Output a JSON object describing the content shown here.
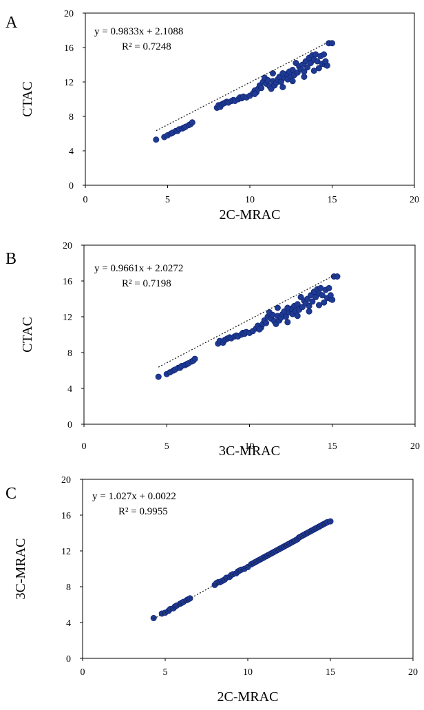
{
  "colors": {
    "point": "#1f3a93",
    "point_stroke": "#0b1f6b",
    "trendline": "#222222",
    "axis": "#000000"
  },
  "chart_data": [
    {
      "type": "scatter",
      "panel_label": "A",
      "xlabel": "2C-MRAC",
      "ylabel": "CTAC",
      "xlim": [
        0,
        20
      ],
      "ylim": [
        0,
        20
      ],
      "xticks": [
        "0",
        "5",
        "10",
        "15",
        "20"
      ],
      "yticks": [
        "0",
        "4",
        "8",
        "12",
        "16",
        "20"
      ],
      "grid": false,
      "equation": "y = 0.9833x + 2.1088",
      "r_squared": "R² = 0.7248",
      "trendline": {
        "slope": 0.9833,
        "intercept": 2.1088,
        "x_range": [
          4.3,
          15.0
        ]
      },
      "points": [
        [
          4.3,
          5.3
        ],
        [
          4.8,
          5.6
        ],
        [
          5.0,
          5.8
        ],
        [
          5.2,
          6.0
        ],
        [
          5.3,
          6.1
        ],
        [
          5.5,
          6.3
        ],
        [
          5.6,
          6.3
        ],
        [
          5.7,
          6.5
        ],
        [
          5.9,
          6.6
        ],
        [
          6.0,
          6.7
        ],
        [
          6.1,
          6.8
        ],
        [
          6.3,
          7.0
        ],
        [
          6.4,
          7.1
        ],
        [
          6.5,
          7.3
        ],
        [
          8.0,
          9.0
        ],
        [
          8.1,
          9.3
        ],
        [
          8.2,
          9.1
        ],
        [
          8.3,
          9.4
        ],
        [
          8.4,
          9.5
        ],
        [
          8.5,
          9.6
        ],
        [
          8.6,
          9.7
        ],
        [
          8.7,
          9.6
        ],
        [
          8.9,
          9.8
        ],
        [
          9.0,
          9.9
        ],
        [
          9.1,
          9.8
        ],
        [
          9.3,
          10.0
        ],
        [
          9.4,
          10.2
        ],
        [
          9.5,
          10.1
        ],
        [
          9.6,
          10.3
        ],
        [
          9.8,
          10.2
        ],
        [
          10.0,
          10.4
        ],
        [
          10.2,
          10.7
        ],
        [
          10.3,
          11.0
        ],
        [
          10.4,
          10.8
        ],
        [
          10.5,
          11.2
        ],
        [
          10.6,
          11.6
        ],
        [
          10.7,
          11.3
        ],
        [
          10.8,
          12.0
        ],
        [
          10.9,
          12.5
        ],
        [
          11.0,
          11.8
        ],
        [
          11.1,
          12.2
        ],
        [
          11.2,
          11.5
        ],
        [
          11.3,
          11.2
        ],
        [
          11.4,
          12.1
        ],
        [
          11.5,
          11.6
        ],
        [
          11.6,
          11.9
        ],
        [
          11.7,
          12.3
        ],
        [
          11.8,
          12.6
        ],
        [
          11.9,
          12.0
        ],
        [
          12.0,
          11.4
        ],
        [
          12.1,
          12.5
        ],
        [
          12.2,
          12.9
        ],
        [
          12.3,
          12.3
        ],
        [
          12.4,
          13.2
        ],
        [
          12.5,
          12.6
        ],
        [
          12.6,
          13.4
        ],
        [
          12.7,
          12.8
        ],
        [
          12.8,
          14.2
        ],
        [
          12.9,
          13.1
        ],
        [
          13.0,
          13.8
        ],
        [
          13.1,
          13.5
        ],
        [
          13.2,
          14.0
        ],
        [
          13.3,
          13.2
        ],
        [
          13.4,
          14.4
        ],
        [
          13.5,
          13.7
        ],
        [
          13.6,
          14.8
        ],
        [
          13.7,
          14.2
        ],
        [
          13.8,
          15.1
        ],
        [
          13.9,
          14.6
        ],
        [
          14.0,
          15.2
        ],
        [
          14.1,
          14.4
        ],
        [
          14.2,
          13.6
        ],
        [
          14.3,
          15.0
        ],
        [
          14.4,
          14.1
        ],
        [
          14.5,
          15.2
        ],
        [
          14.6,
          14.0
        ],
        [
          14.7,
          13.9
        ],
        [
          14.8,
          16.5
        ],
        [
          15.0,
          16.5
        ],
        [
          12.0,
          13.0
        ],
        [
          12.6,
          12.1
        ],
        [
          13.3,
          12.6
        ],
        [
          13.9,
          13.3
        ],
        [
          14.6,
          14.4
        ],
        [
          11.4,
          13.0
        ],
        [
          10.3,
          10.6
        ]
      ]
    },
    {
      "type": "scatter",
      "panel_label": "B",
      "xlabel": "3C-MRAC",
      "ylabel": "CTAC",
      "xlim": [
        0,
        20
      ],
      "ylim": [
        0,
        20
      ],
      "xticks": [
        "0",
        "5",
        "10",
        "15",
        "20"
      ],
      "yticks": [
        "0",
        "4",
        "8",
        "12",
        "16",
        "20"
      ],
      "grid": false,
      "equation": "y = 0.9661x + 2.0272",
      "r_squared": "R² = 0.7198",
      "trendline": {
        "slope": 0.9661,
        "intercept": 2.0272,
        "x_range": [
          4.5,
          15.3
        ]
      },
      "points": [
        [
          4.5,
          5.3
        ],
        [
          5.0,
          5.6
        ],
        [
          5.2,
          5.8
        ],
        [
          5.4,
          6.0
        ],
        [
          5.5,
          6.1
        ],
        [
          5.7,
          6.3
        ],
        [
          5.8,
          6.3
        ],
        [
          5.9,
          6.5
        ],
        [
          6.1,
          6.6
        ],
        [
          6.2,
          6.7
        ],
        [
          6.3,
          6.8
        ],
        [
          6.5,
          7.0
        ],
        [
          6.6,
          7.1
        ],
        [
          6.7,
          7.3
        ],
        [
          8.1,
          9.0
        ],
        [
          8.2,
          9.3
        ],
        [
          8.4,
          9.1
        ],
        [
          8.5,
          9.4
        ],
        [
          8.6,
          9.5
        ],
        [
          8.7,
          9.6
        ],
        [
          8.8,
          9.7
        ],
        [
          8.9,
          9.6
        ],
        [
          9.1,
          9.8
        ],
        [
          9.2,
          9.9
        ],
        [
          9.3,
          9.8
        ],
        [
          9.5,
          10.0
        ],
        [
          9.6,
          10.2
        ],
        [
          9.7,
          10.1
        ],
        [
          9.8,
          10.3
        ],
        [
          10.0,
          10.2
        ],
        [
          10.2,
          10.4
        ],
        [
          10.4,
          10.7
        ],
        [
          10.5,
          11.0
        ],
        [
          10.7,
          10.8
        ],
        [
          10.8,
          11.2
        ],
        [
          10.9,
          11.6
        ],
        [
          11.0,
          11.3
        ],
        [
          11.1,
          12.0
        ],
        [
          11.2,
          12.5
        ],
        [
          11.3,
          11.8
        ],
        [
          11.4,
          12.2
        ],
        [
          11.5,
          11.5
        ],
        [
          11.6,
          11.2
        ],
        [
          11.7,
          12.1
        ],
        [
          11.8,
          11.6
        ],
        [
          11.9,
          11.9
        ],
        [
          12.0,
          12.3
        ],
        [
          12.1,
          12.6
        ],
        [
          12.2,
          12.0
        ],
        [
          12.3,
          11.4
        ],
        [
          12.4,
          12.5
        ],
        [
          12.5,
          12.9
        ],
        [
          12.6,
          12.3
        ],
        [
          12.7,
          13.2
        ],
        [
          12.8,
          12.6
        ],
        [
          12.9,
          13.4
        ],
        [
          13.0,
          12.8
        ],
        [
          13.1,
          14.2
        ],
        [
          13.2,
          13.1
        ],
        [
          13.3,
          13.8
        ],
        [
          13.4,
          13.5
        ],
        [
          13.5,
          14.0
        ],
        [
          13.6,
          13.2
        ],
        [
          13.7,
          14.4
        ],
        [
          13.8,
          13.7
        ],
        [
          13.9,
          14.8
        ],
        [
          14.0,
          14.2
        ],
        [
          14.1,
          15.1
        ],
        [
          14.2,
          14.6
        ],
        [
          14.3,
          15.2
        ],
        [
          14.4,
          14.4
        ],
        [
          14.5,
          13.6
        ],
        [
          14.6,
          15.0
        ],
        [
          14.7,
          14.1
        ],
        [
          14.8,
          15.2
        ],
        [
          14.9,
          14.0
        ],
        [
          15.0,
          13.9
        ],
        [
          15.1,
          16.5
        ],
        [
          15.3,
          16.5
        ],
        [
          12.3,
          13.0
        ],
        [
          12.9,
          12.1
        ],
        [
          13.6,
          12.6
        ],
        [
          14.2,
          13.3
        ],
        [
          14.9,
          14.4
        ],
        [
          11.7,
          13.0
        ],
        [
          10.6,
          10.6
        ]
      ]
    },
    {
      "type": "scatter",
      "panel_label": "C",
      "xlabel": "2C-MRAC",
      "ylabel": "3C-MRAC",
      "xlim": [
        0,
        20
      ],
      "ylim": [
        0,
        20
      ],
      "xticks": [
        "0",
        "5",
        "10",
        "15",
        "20"
      ],
      "yticks": [
        "0",
        "4",
        "8",
        "12",
        "16",
        "20"
      ],
      "grid": false,
      "equation": "y = 1.027x + 0.0022",
      "r_squared": "R² = 0.9955",
      "trendline": {
        "slope": 1.027,
        "intercept": 0.0022,
        "x_range": [
          4.3,
          15.0
        ]
      },
      "points": [
        [
          4.3,
          4.5
        ],
        [
          4.8,
          5.0
        ],
        [
          5.0,
          5.1
        ],
        [
          5.2,
          5.3
        ],
        [
          5.3,
          5.5
        ],
        [
          5.5,
          5.6
        ],
        [
          5.6,
          5.8
        ],
        [
          5.7,
          5.9
        ],
        [
          5.9,
          6.1
        ],
        [
          6.0,
          6.2
        ],
        [
          6.1,
          6.3
        ],
        [
          6.3,
          6.5
        ],
        [
          6.4,
          6.6
        ],
        [
          6.5,
          6.7
        ],
        [
          8.0,
          8.2
        ],
        [
          8.1,
          8.4
        ],
        [
          8.2,
          8.5
        ],
        [
          8.3,
          8.5
        ],
        [
          8.4,
          8.6
        ],
        [
          8.5,
          8.7
        ],
        [
          8.6,
          8.8
        ],
        [
          8.7,
          9.0
        ],
        [
          8.9,
          9.1
        ],
        [
          9.0,
          9.3
        ],
        [
          9.1,
          9.4
        ],
        [
          9.3,
          9.5
        ],
        [
          9.4,
          9.7
        ],
        [
          9.5,
          9.8
        ],
        [
          9.6,
          9.9
        ],
        [
          9.8,
          10.0
        ],
        [
          10.0,
          10.2
        ],
        [
          10.2,
          10.5
        ],
        [
          10.3,
          10.6
        ],
        [
          10.4,
          10.7
        ],
        [
          10.5,
          10.8
        ],
        [
          10.6,
          10.9
        ],
        [
          10.7,
          11.0
        ],
        [
          10.8,
          11.1
        ],
        [
          10.9,
          11.2
        ],
        [
          11.0,
          11.3
        ],
        [
          11.1,
          11.4
        ],
        [
          11.2,
          11.5
        ],
        [
          11.3,
          11.6
        ],
        [
          11.4,
          11.7
        ],
        [
          11.5,
          11.8
        ],
        [
          11.6,
          11.9
        ],
        [
          11.7,
          12.0
        ],
        [
          11.8,
          12.1
        ],
        [
          11.9,
          12.2
        ],
        [
          12.0,
          12.3
        ],
        [
          12.1,
          12.4
        ],
        [
          12.2,
          12.5
        ],
        [
          12.3,
          12.6
        ],
        [
          12.4,
          12.7
        ],
        [
          12.5,
          12.8
        ],
        [
          12.6,
          12.9
        ],
        [
          12.7,
          13.0
        ],
        [
          12.8,
          13.1
        ],
        [
          12.9,
          13.2
        ],
        [
          13.0,
          13.3
        ],
        [
          13.1,
          13.5
        ],
        [
          13.2,
          13.6
        ],
        [
          13.3,
          13.7
        ],
        [
          13.4,
          13.8
        ],
        [
          13.5,
          13.9
        ],
        [
          13.6,
          14.0
        ],
        [
          13.7,
          14.1
        ],
        [
          13.8,
          14.2
        ],
        [
          13.9,
          14.3
        ],
        [
          14.0,
          14.4
        ],
        [
          14.1,
          14.5
        ],
        [
          14.2,
          14.6
        ],
        [
          14.3,
          14.7
        ],
        [
          14.4,
          14.8
        ],
        [
          14.5,
          14.9
        ],
        [
          14.6,
          15.0
        ],
        [
          14.7,
          15.1
        ],
        [
          14.8,
          15.2
        ],
        [
          15.0,
          15.3
        ]
      ]
    }
  ]
}
